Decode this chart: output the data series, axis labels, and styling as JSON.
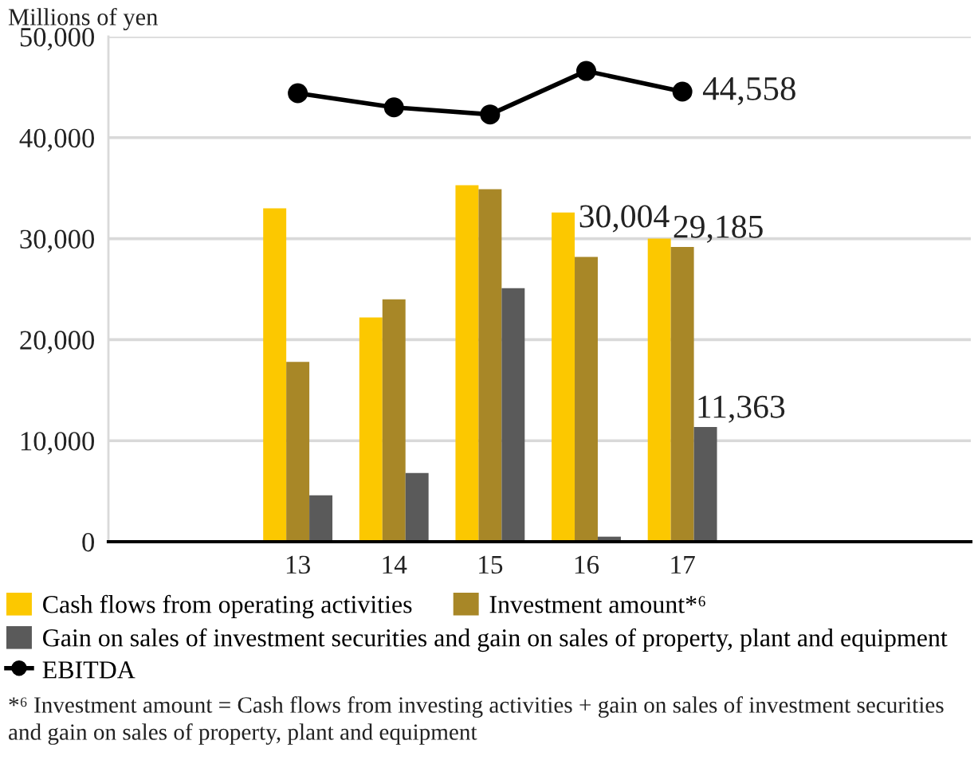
{
  "chart_data": {
    "type": "bar",
    "ylabel": "Millions of yen",
    "categories": [
      "13",
      "14",
      "15",
      "16",
      "17"
    ],
    "series": [
      {
        "name": "Cash flows from operating activities",
        "color": "#fcc800",
        "values": [
          33000,
          22200,
          35300,
          32600,
          30004
        ],
        "value_labels": [
          null,
          null,
          null,
          null,
          "30,004"
        ]
      },
      {
        "name": "Investment amount*⁶",
        "color": "#a88727",
        "values": [
          17800,
          24000,
          34900,
          28200,
          29185
        ],
        "value_labels": [
          null,
          null,
          null,
          null,
          "29,185"
        ]
      },
      {
        "name": "Gain on sales of investment securities and gain on sales of property, plant and equipment",
        "color": "#5a5a5a",
        "values": [
          4600,
          6800,
          25100,
          500,
          11363
        ],
        "value_labels": [
          null,
          null,
          null,
          null,
          "11,363"
        ]
      },
      {
        "name": "EBITDA",
        "type": "line",
        "color": "#000000",
        "values": [
          44400,
          43000,
          42300,
          46600,
          44558
        ],
        "value_labels": [
          null,
          null,
          null,
          null,
          "44,558"
        ]
      }
    ],
    "ylim": [
      0,
      50000
    ],
    "yticks": [
      0,
      {
        "value": 10000,
        "label": "10,000"
      },
      {
        "value": 20000,
        "label": "20,000"
      },
      {
        "value": 30000,
        "label": "30,000"
      },
      {
        "value": 40000,
        "label": "40,000"
      },
      {
        "value": 50000,
        "label": "50,000"
      }
    ],
    "grid": "y",
    "legend": "bottom",
    "marker": "circle",
    "line_style": "solid",
    "annotations": [
      "*⁶ Investment amount = Cash flows from investing activities + gain on sales of investment securities and gain on sales of property, plant and equipment"
    ]
  }
}
